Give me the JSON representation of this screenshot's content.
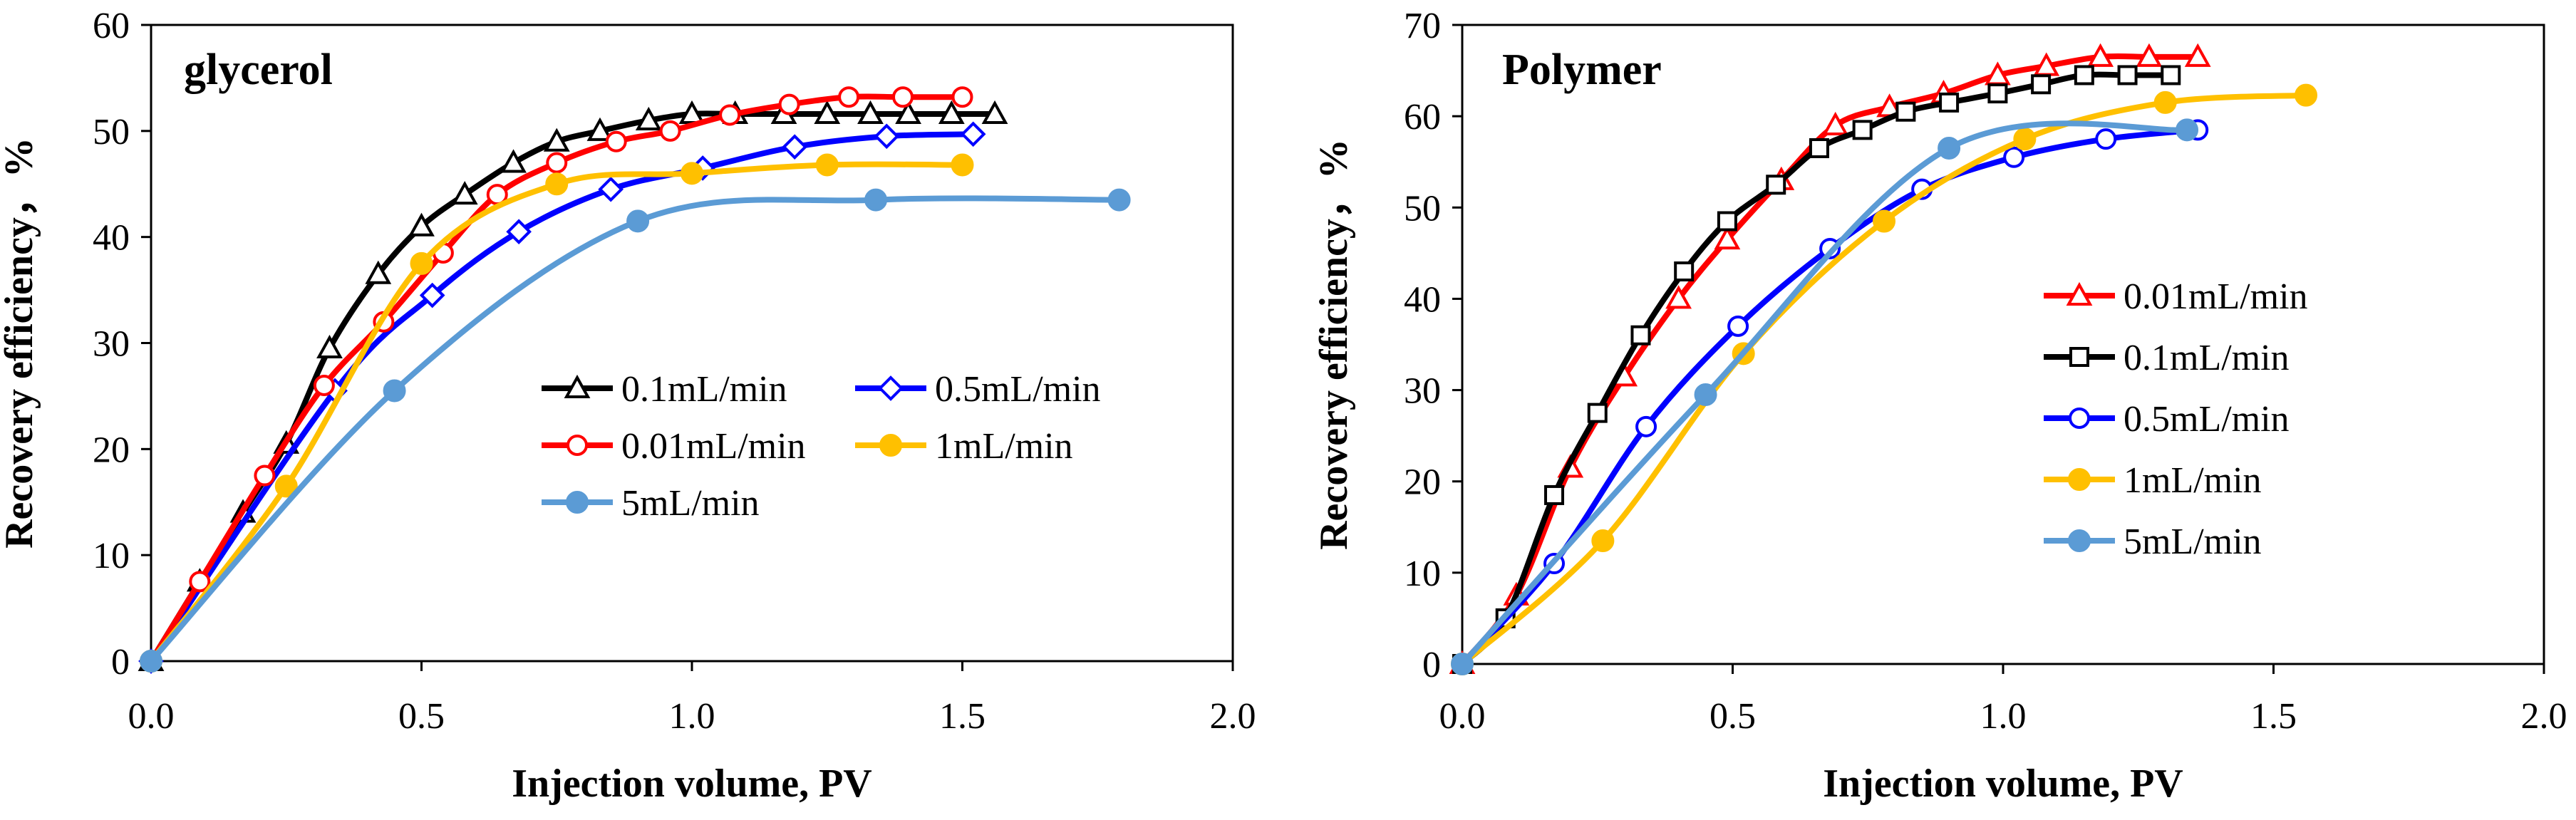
{
  "chart_data": [
    {
      "type": "line",
      "title": "glycerol",
      "xlabel": "Injection volume, PV",
      "ylabel": "Recovery efficiency，%",
      "xlim": [
        0.0,
        2.0
      ],
      "ylim": [
        0,
        60
      ],
      "x_ticks": [
        "0.0",
        "0.5",
        "1.0",
        "1.5",
        "2.0"
      ],
      "y_ticks": [
        "0",
        "10",
        "20",
        "30",
        "40",
        "50",
        "60"
      ],
      "legend_columns": 2,
      "series": [
        {
          "name": "0.1mL/min",
          "color": "#000000",
          "marker": "triangle",
          "x": [
            0,
            0.09,
            0.17,
            0.25,
            0.33,
            0.42,
            0.5,
            0.58,
            0.67,
            0.75,
            0.83,
            0.92,
            1.0,
            1.08,
            1.17,
            1.25,
            1.33,
            1.4,
            1.48,
            1.56
          ],
          "y": [
            0,
            7.5,
            14,
            20.5,
            29.5,
            36.5,
            41,
            44,
            47,
            49,
            50,
            51,
            51.6,
            51.6,
            51.6,
            51.6,
            51.6,
            51.6,
            51.6,
            51.6
          ]
        },
        {
          "name": "0.5mL/min",
          "color": "#0000ff",
          "marker": "diamond",
          "x": [
            0,
            0.34,
            0.52,
            0.68,
            0.85,
            1.02,
            1.19,
            1.36,
            1.52
          ],
          "y": [
            0,
            25.5,
            34.5,
            40.5,
            44.5,
            46.5,
            48.5,
            49.5,
            49.7
          ]
        },
        {
          "name": "0.01mL/min",
          "color": "#ff0000",
          "marker": "circle-open",
          "x": [
            0,
            0.09,
            0.21,
            0.32,
            0.43,
            0.54,
            0.64,
            0.75,
            0.86,
            0.96,
            1.07,
            1.18,
            1.29,
            1.39,
            1.5
          ],
          "y": [
            0,
            7.5,
            17.5,
            26,
            32,
            38.5,
            44,
            47,
            49,
            50,
            51.5,
            52.5,
            53.2,
            53.2,
            53.2
          ]
        },
        {
          "name": "1mL/min",
          "color": "#ffc000",
          "marker": "circle-filled",
          "x": [
            0,
            0.25,
            0.5,
            0.75,
            1.0,
            1.25,
            1.5
          ],
          "y": [
            0,
            16.5,
            37.5,
            45,
            46,
            46.8,
            46.8
          ]
        },
        {
          "name": "5mL/min",
          "color": "#5b9bd5",
          "marker": "circle-filled",
          "x": [
            0,
            0.45,
            0.9,
            1.34,
            1.79
          ],
          "y": [
            0,
            25.5,
            41.5,
            43.5,
            43.5
          ]
        }
      ]
    },
    {
      "type": "line",
      "title": "Polymer",
      "xlabel": "Injection volume, PV",
      "ylabel": "Recovery efficiency，%",
      "xlim": [
        0.0,
        2.0
      ],
      "ylim": [
        0,
        70
      ],
      "x_ticks": [
        "0.0",
        "0.5",
        "1.0",
        "1.5",
        "2.0"
      ],
      "y_ticks": [
        "0",
        "10",
        "20",
        "30",
        "40",
        "50",
        "60",
        "70"
      ],
      "legend_columns": 1,
      "series": [
        {
          "name": "0.01mL/min",
          "color": "#ff0000",
          "marker": "triangle",
          "x": [
            0,
            0.1,
            0.2,
            0.3,
            0.4,
            0.49,
            0.59,
            0.69,
            0.79,
            0.89,
            0.99,
            1.08,
            1.18,
            1.27,
            1.36
          ],
          "y": [
            0,
            7.5,
            21.5,
            31.5,
            40,
            46.5,
            53,
            59,
            61,
            62.5,
            64.5,
            65.5,
            66.5,
            66.5,
            66.5
          ]
        },
        {
          "name": "0.1mL/min",
          "color": "#000000",
          "marker": "square",
          "x": [
            0,
            0.08,
            0.17,
            0.25,
            0.33,
            0.41,
            0.49,
            0.58,
            0.66,
            0.74,
            0.82,
            0.9,
            0.99,
            1.07,
            1.15,
            1.23,
            1.31
          ],
          "y": [
            0,
            5,
            18.5,
            27.5,
            36,
            43,
            48.5,
            52.5,
            56.5,
            58.5,
            60.5,
            61.5,
            62.5,
            63.5,
            64.5,
            64.5,
            64.5
          ]
        },
        {
          "name": "0.5mL/min",
          "color": "#0000ff",
          "marker": "circle-open",
          "x": [
            0,
            0.17,
            0.34,
            0.51,
            0.68,
            0.85,
            1.02,
            1.19,
            1.36
          ],
          "y": [
            0,
            11,
            26,
            37,
            45.5,
            52,
            55.5,
            57.5,
            58.5
          ]
        },
        {
          "name": "1mL/min",
          "color": "#ffc000",
          "marker": "circle-filled",
          "x": [
            0,
            0.26,
            0.52,
            0.78,
            1.04,
            1.3,
            1.56
          ],
          "y": [
            0,
            13.5,
            34,
            48.5,
            57.5,
            61.5,
            62.3
          ]
        },
        {
          "name": "5mL/min",
          "color": "#5b9bd5",
          "marker": "circle-filled",
          "x": [
            0,
            0.45,
            0.9,
            1.34
          ],
          "y": [
            0,
            29.5,
            56.5,
            58.5
          ]
        }
      ]
    }
  ]
}
